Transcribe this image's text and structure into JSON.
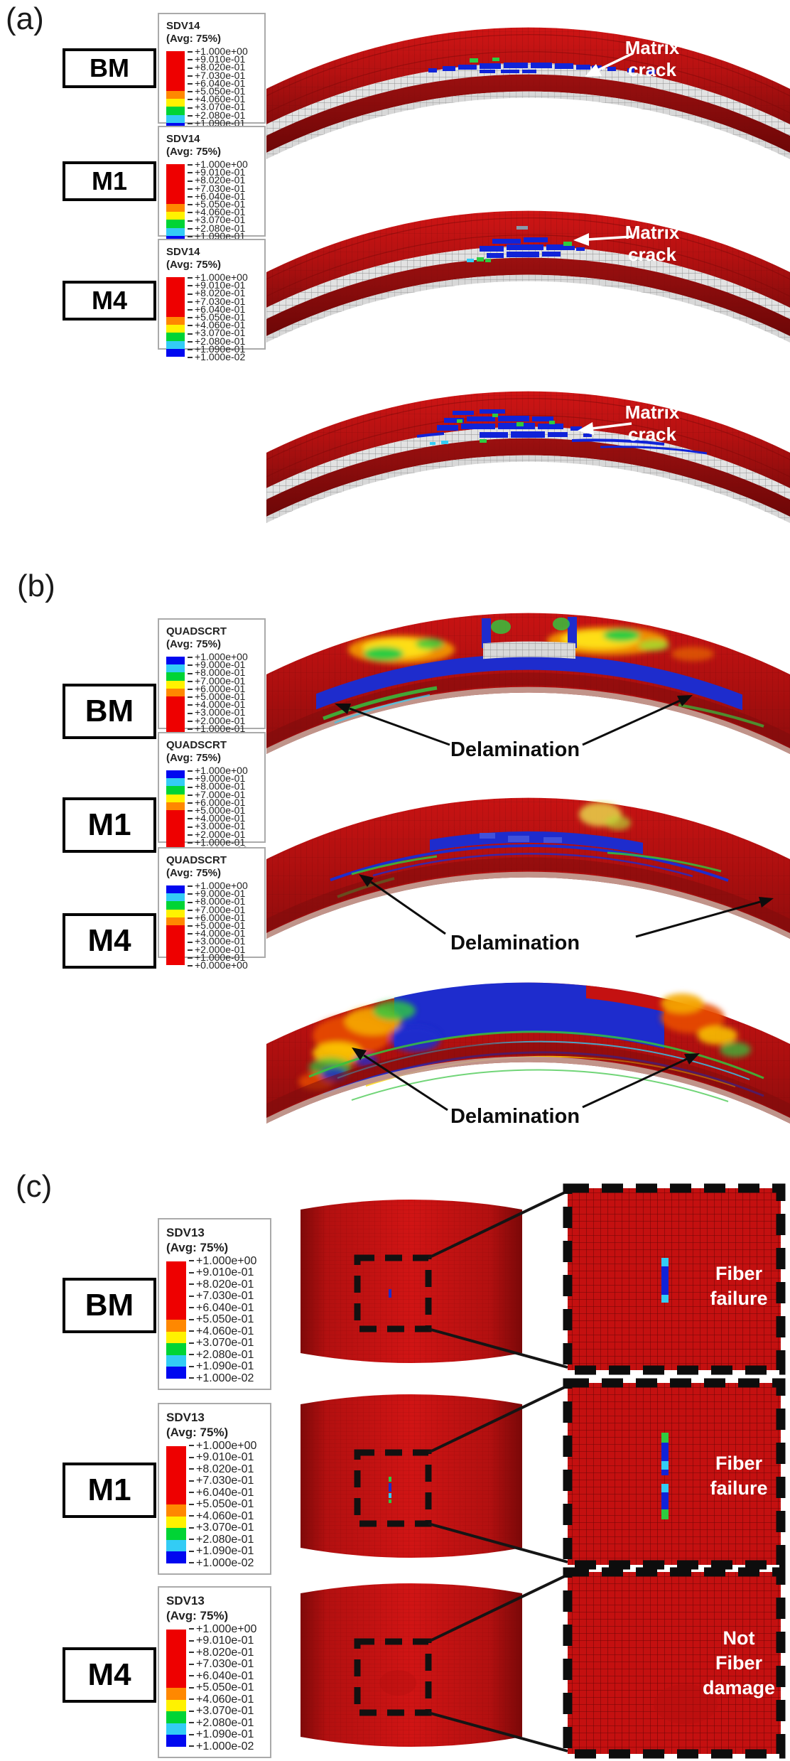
{
  "figure": {
    "panels": [
      {
        "id": "a",
        "label": "(a)",
        "legend": {
          "title": "SDV14",
          "subtitle": "(Avg: 75%)",
          "values": [
            "+1.000e+00",
            "+9.010e-01",
            "+8.020e-01",
            "+7.030e-01",
            "+6.040e-01",
            "+5.050e-01",
            "+4.060e-01",
            "+3.070e-01",
            "+2.080e-01",
            "+1.090e-01",
            "+1.000e-02"
          ],
          "colors": [
            "#ee0000",
            "#ee0000",
            "#ee0000",
            "#ee0000",
            "#ee0000",
            "#ff8800",
            "#fff200",
            "#00d435",
            "#33ccf5",
            "#0008f0"
          ]
        },
        "rows": [
          {
            "model": "BM",
            "annotation": "Matrix\ncrack"
          },
          {
            "model": "M1",
            "annotation": "Matrix\ncrack"
          },
          {
            "model": "M4",
            "annotation": "Matrix\ncrack"
          }
        ]
      },
      {
        "id": "b",
        "label": "(b)",
        "legend": {
          "title": "QUADSCRT",
          "subtitle": "(Avg: 75%)",
          "values": [
            "+1.000e+00",
            "+9.000e-01",
            "+8.000e-01",
            "+7.000e-01",
            "+6.000e-01",
            "+5.000e-01",
            "+4.000e-01",
            "+3.000e-01",
            "+2.000e-01",
            "+1.000e-01",
            "+0.000e+00"
          ],
          "colors": [
            "#0008f0",
            "#33ccf5",
            "#00d435",
            "#fff200",
            "#ff8800",
            "#ee0000",
            "#ee0000",
            "#ee0000",
            "#ee0000",
            "#ee0000"
          ]
        },
        "rows": [
          {
            "model": "BM",
            "annotation": "Delamination"
          },
          {
            "model": "M1",
            "annotation": "Delamination"
          },
          {
            "model": "M4",
            "annotation": "Delamination"
          }
        ]
      },
      {
        "id": "c",
        "label": "(c)",
        "legend": {
          "title": "SDV13",
          "subtitle": "(Avg: 75%)",
          "values": [
            "+1.000e+00",
            "+9.010e-01",
            "+8.020e-01",
            "+7.030e-01",
            "+6.040e-01",
            "+5.050e-01",
            "+4.060e-01",
            "+3.070e-01",
            "+2.080e-01",
            "+1.090e-01",
            "+1.000e-02"
          ],
          "colors": [
            "#ee0000",
            "#ee0000",
            "#ee0000",
            "#ee0000",
            "#ee0000",
            "#ff8800",
            "#fff200",
            "#00d435",
            "#33ccf5",
            "#0008f0"
          ]
        },
        "rows": [
          {
            "model": "BM",
            "annotation": "Fiber\nfailure"
          },
          {
            "model": "M1",
            "annotation": "Fiber\nfailure"
          },
          {
            "model": "M4",
            "annotation": "Not\nFiber\ndamage"
          }
        ]
      }
    ],
    "colors": {
      "contour_red": "#c01212",
      "contour_dark_red": "#7e0a0a",
      "damage_blue": "#1023d8",
      "damage_green": "#2ecc40",
      "damage_yellow": "#ffe714",
      "damage_orange": "#f08000",
      "damage_cyan": "#33ccf5",
      "mesh_gray": "#d9d9d9",
      "annotation_white": "#ffffff",
      "annotation_black": "#0d0d0d"
    }
  }
}
